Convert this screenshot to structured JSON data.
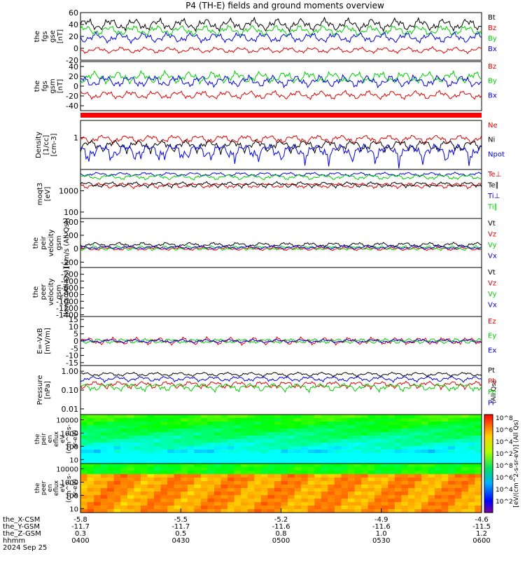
{
  "title": "P4 (TH-E) fields and ground moments overview",
  "colors": {
    "black": "#000000",
    "red": "#e00000",
    "green": "#00d000",
    "blue": "#0000e0"
  },
  "chart_data": {
    "type": "line",
    "panels": [
      {
        "ylabel": [
          "the",
          "fgs",
          "gse",
          "[nT]"
        ],
        "yticks": [
          "60",
          "40",
          "20",
          "0",
          "-20"
        ],
        "yrange": [
          -20,
          60
        ],
        "scale": "linear",
        "series": [
          {
            "name": "Bt",
            "color": "black",
            "level": 40,
            "amp": 12
          },
          {
            "name": "Bz",
            "color": "red",
            "level": -3,
            "amp": 6
          },
          {
            "name": "By",
            "color": "green",
            "level": 30,
            "amp": 10
          },
          {
            "name": "Bx",
            "color": "blue",
            "level": 18,
            "amp": 10
          }
        ]
      },
      {
        "ylabel": [
          "the",
          "fgs",
          "gsm",
          "[nT]"
        ],
        "yticks": [
          "40",
          "20",
          "0",
          "-20",
          "-40"
        ],
        "yrange": [
          -50,
          50
        ],
        "scale": "linear",
        "series": [
          {
            "name": "Bz",
            "color": "red",
            "level": -18,
            "amp": 10
          },
          {
            "name": "By",
            "color": "green",
            "level": 18,
            "amp": 14
          },
          {
            "name": "Bx",
            "color": "blue",
            "level": 10,
            "amp": 14
          }
        ]
      },
      {
        "ylabel": [
          "Density",
          "[1/cc]",
          "[cm-3]"
        ],
        "yticks": [
          "1"
        ],
        "yrange": [
          0.05,
          5
        ],
        "scale": "log",
        "series": [
          {
            "name": "Ne",
            "color": "red",
            "level": 0.9,
            "amp": 0.4
          },
          {
            "name": "Ni",
            "color": "black",
            "level": 0.5,
            "amp": 0.3
          },
          {
            "name": "Npot",
            "color": "blue",
            "level": 0.3,
            "amp": 0.25
          }
        ]
      },
      {
        "ylabel": [
          "moqt3",
          "[eV]"
        ],
        "yticks": [
          "1000",
          "100"
        ],
        "yrange": [
          50,
          10000
        ],
        "scale": "log",
        "series": [
          {
            "name": "Te⊥",
            "color": "red",
            "level": 1800,
            "amp": 600
          },
          {
            "name": "Te∥",
            "color": "black",
            "level": 2000,
            "amp": 700
          },
          {
            "name": "Ti⊥",
            "color": "blue",
            "level": 6000,
            "amp": 1500
          },
          {
            "name": "Ti∥",
            "color": "green",
            "level": 4500,
            "amp": 1500
          }
        ]
      },
      {
        "ylabel": [
          "the",
          "peir",
          "velocity",
          "gsm",
          "[km/s (All Qs)]"
        ],
        "yticks": [
          "400",
          "200",
          "0",
          "-200"
        ],
        "yrange": [
          -280,
          450
        ],
        "scale": "linear",
        "series": [
          {
            "name": "Vt",
            "color": "black",
            "level": 60,
            "amp": 40
          },
          {
            "name": "Vz",
            "color": "red",
            "level": 0,
            "amp": 30
          },
          {
            "name": "Vy",
            "color": "green",
            "level": 10,
            "amp": 40
          },
          {
            "name": "Vx",
            "color": "blue",
            "level": 20,
            "amp": 30
          }
        ]
      },
      {
        "ylabel": [
          "the",
          "peer",
          "velocity",
          "gsm",
          "[km/s (All Qs)]"
        ],
        "yticks": [
          "-200",
          "-400",
          "-600",
          "-800",
          "-1000",
          "-1200",
          "-1400"
        ],
        "yrange": [
          -1450,
          0
        ],
        "scale": "linear",
        "series": [
          {
            "name": "Vt",
            "color": "black",
            "level": null,
            "amp": 0
          },
          {
            "name": "Vz",
            "color": "red",
            "level": null,
            "amp": 0
          },
          {
            "name": "Vy",
            "color": "green",
            "level": null,
            "amp": 0
          },
          {
            "name": "Vx",
            "color": "blue",
            "level": null,
            "amp": 0
          }
        ]
      },
      {
        "ylabel": [
          "E=-VxB",
          "[mV/m]"
        ],
        "yticks": [
          "15",
          "10",
          "5",
          "0",
          "-5",
          "-10",
          "-15"
        ],
        "yrange": [
          -17,
          17
        ],
        "scale": "linear",
        "series": [
          {
            "name": "Ez",
            "color": "red",
            "level": 0,
            "amp": 3
          },
          {
            "name": "Ey",
            "color": "green",
            "level": 0,
            "amp": 2
          },
          {
            "name": "Ex",
            "color": "blue",
            "level": 0,
            "amp": 1.5
          }
        ]
      },
      {
        "ylabel": [
          "Pressure",
          "[nPa]"
        ],
        "yticks": [
          "1.00",
          "0.10",
          "0.01"
        ],
        "yrange": [
          0.005,
          2
        ],
        "scale": "log",
        "series": [
          {
            "name": "Pt",
            "color": "black",
            "level": 0.7,
            "amp": 0.2
          },
          {
            "name": "Pb",
            "color": "red",
            "level": 0.2,
            "amp": 0.1
          },
          {
            "name": "Pe",
            "color": "green",
            "level": 0.15,
            "amp": 0.08
          },
          {
            "name": "Pi",
            "color": "blue",
            "level": 0.4,
            "amp": 0.15
          }
        ]
      }
    ],
    "pi_units": "(All Qs)",
    "spectrograms": [
      {
        "ylabel": [
          "the",
          "peir",
          "en",
          "eflux",
          "eV",
          "(cm^2-s-",
          "sr-eV)"
        ],
        "yticks": [
          "10000",
          "1000",
          "100",
          "10"
        ],
        "yrange": [
          5,
          25000
        ],
        "scale": "log"
      },
      {
        "ylabel": [
          "the",
          "peer",
          "en",
          "eflux",
          "eV",
          "(cm^2-s-",
          "sr-eV)"
        ],
        "yticks": [
          "10000",
          "1000",
          "100",
          "10"
        ],
        "yrange": [
          5,
          25000
        ],
        "scale": "log"
      }
    ],
    "colorbar": {
      "ticks": [
        "10^8",
        "10^6",
        "10^4",
        "10^2",
        "10^8",
        "10^6",
        "10^4",
        "10^2"
      ],
      "label": "[eV/(cm^2-s-sr-eV)] (All Qs)"
    },
    "x_axis": {
      "times": [
        "0400",
        "0430",
        "0500",
        "0530",
        "0600"
      ],
      "the_X-CSM": [
        "-5.8",
        "-5.5",
        "-5.2",
        "-4.9",
        "-4.6"
      ],
      "the_Y-GSM": [
        "-11.7",
        "-11.7",
        "-11.6",
        "-11.6",
        "-11.5"
      ],
      "the_Z-GSM": [
        "0.3",
        "0.5",
        "0.8",
        "1.0",
        "1.2"
      ],
      "row_labels": [
        "the_X-CSM",
        "the_Y-GSM",
        "the_Z-GSM",
        "hhmm"
      ],
      "date": "2024 Sep 25"
    }
  }
}
